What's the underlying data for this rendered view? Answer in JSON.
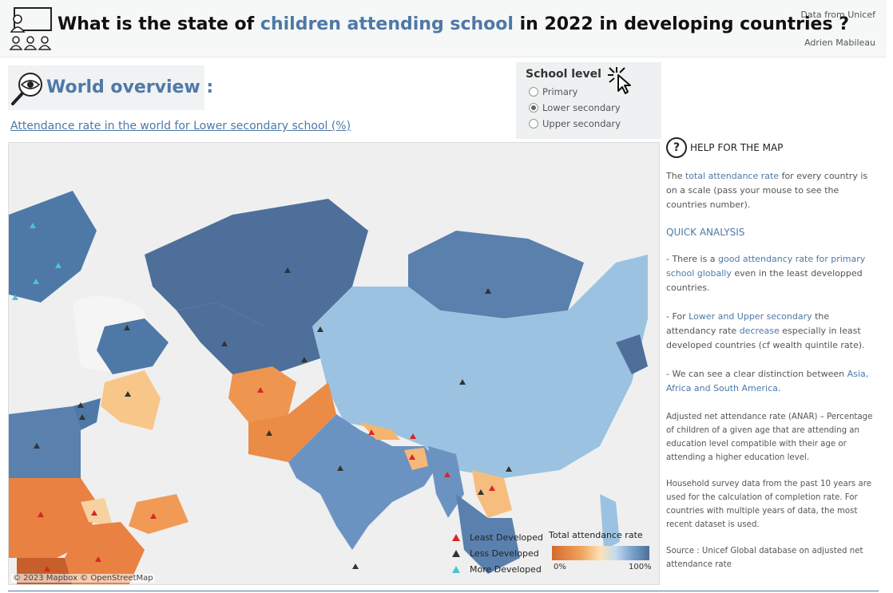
{
  "header": {
    "title_pre": "What is the state of ",
    "title_highlight": "children attending school",
    "title_post": " in 2022 in developing countries  ?",
    "credit_source": "Data from Unicef",
    "credit_author": "Adrien Mabileau"
  },
  "overview": {
    "title": "World overview :"
  },
  "map_title": "Attendance rate in the world for Lower secondary school (%)",
  "school_level": {
    "title": "School level",
    "options": [
      "Primary",
      "Lower secondary",
      "Upper secondary"
    ],
    "selected": "Lower secondary"
  },
  "map": {
    "attribution": "© 2023 Mapbox  © OpenStreetMap",
    "legend": [
      {
        "label": "Least Developed",
        "color": "#d62728"
      },
      {
        "label": "Less Developed",
        "color": "#333333"
      },
      {
        "label": "More Developed",
        "color": "#4fc1d4"
      }
    ],
    "gradient_title": "Total attendance rate",
    "gradient_low": "0%",
    "gradient_high": "100%"
  },
  "help": {
    "title": "HELP FOR THE MAP",
    "p1_pre": "The ",
    "p1_hl": "total attendance rate",
    "p1_post": " for every country is on a scale (pass your mouse to see the countries number).",
    "quick_analysis": "QUICK ANALYSIS",
    "p2_pre": "- There is a ",
    "p2_hl": "good attendancy rate for primary school globally",
    "p2_post": " even in the least developped countries.",
    "p3_pre": "- For ",
    "p3_hl1": "Lower and Upper secondary",
    "p3_mid": " the attendancy rate ",
    "p3_hl2": "decrease",
    "p3_post": " especially in least developed countries (cf wealth quintile rate).",
    "p4_pre": "- We can see a clear distinction between ",
    "p4_hl": "Asia, Africa and South America",
    "p4_post": ".",
    "anar": "Adjusted net attendance rate (ANAR) – Percentage of children of a given age that are attending an education level compatible with their age or attending a higher education level.",
    "survey": "Household survey data from the past 10 years are used for the calculation of completion rate. For countries with multiple years of data, the most recent dataset is used.",
    "source": "Source : Unicef Global database on adjusted net attendance rate"
  },
  "colors": {
    "accent": "#4e79a7",
    "low": "#e0823a",
    "high": "#4a6f9a"
  }
}
